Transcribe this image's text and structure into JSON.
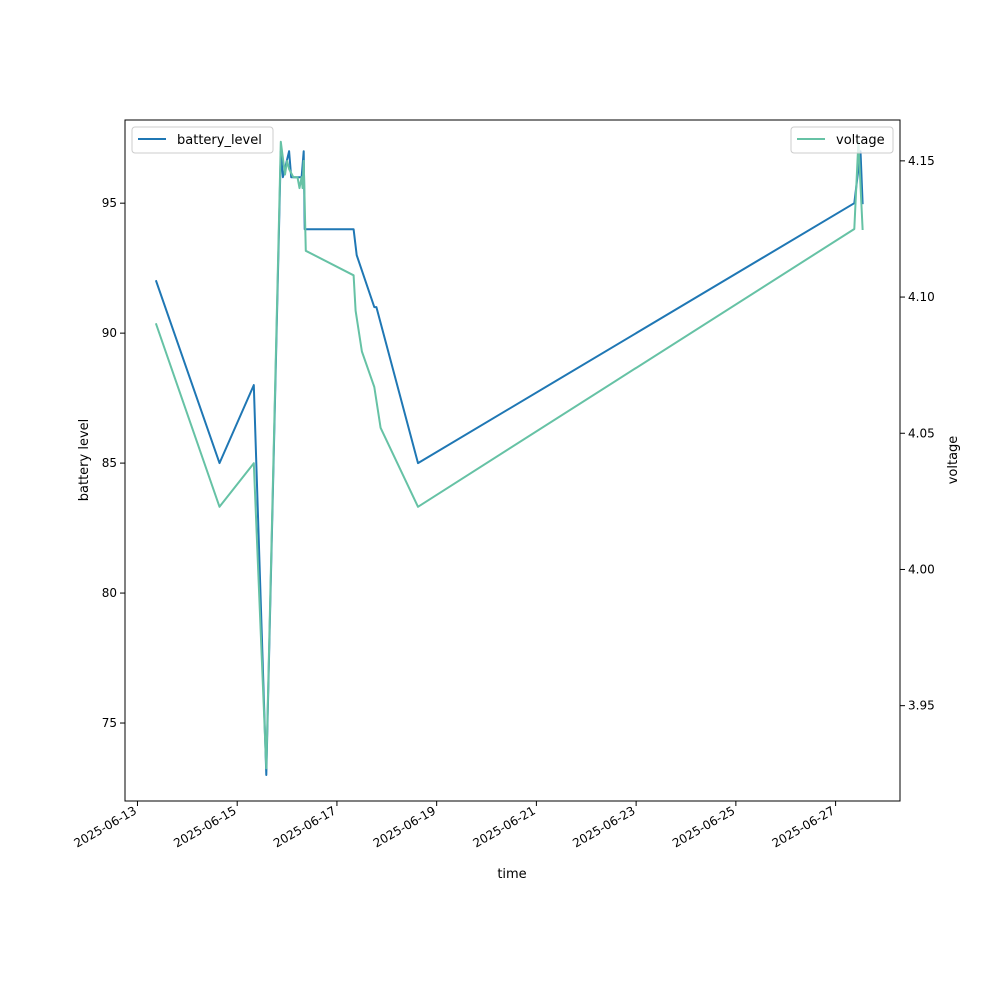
{
  "chart_data": {
    "type": "line",
    "xlabel": "time",
    "ylabel": "battery level",
    "y2label": "voltage",
    "xlim": [
      "2025-06-12 18:00",
      "2025-06-28 07:00"
    ],
    "ylim": [
      72,
      98.2
    ],
    "y2lim": [
      3.915,
      4.165
    ],
    "x_ticks": [
      "2025-06-13",
      "2025-06-15",
      "2025-06-17",
      "2025-06-19",
      "2025-06-21",
      "2025-06-23",
      "2025-06-25",
      "2025-06-27"
    ],
    "y_ticks": [
      75,
      80,
      85,
      90,
      95
    ],
    "y2_ticks": [
      "3.95",
      "4.00",
      "4.05",
      "4.10",
      "4.15"
    ],
    "legend_left": {
      "placement": "top-left",
      "label": "battery_level"
    },
    "legend_right": {
      "placement": "top-right",
      "label": "voltage"
    },
    "colors": {
      "battery_level": "#1f77b4",
      "voltage": "#66c2a5"
    },
    "series": [
      {
        "name": "battery_level",
        "axis": "left",
        "points": [
          [
            "2025-06-13 09:00",
            92
          ],
          [
            "2025-06-14 15:30",
            85
          ],
          [
            "2025-06-15 08:00",
            88
          ],
          [
            "2025-06-15 14:00",
            73
          ],
          [
            "2025-06-15 21:00",
            97
          ],
          [
            "2025-06-15 22:00",
            96
          ],
          [
            "2025-06-16 01:00",
            97
          ],
          [
            "2025-06-16 02:00",
            96
          ],
          [
            "2025-06-16 07:00",
            96
          ],
          [
            "2025-06-16 08:00",
            97
          ],
          [
            "2025-06-16 08:30",
            94
          ],
          [
            "2025-06-17 08:00",
            94
          ],
          [
            "2025-06-17 09:30",
            93
          ],
          [
            "2025-06-17 18:00",
            91
          ],
          [
            "2025-06-17 19:00",
            91
          ],
          [
            "2025-06-18 15:00",
            85
          ],
          [
            "2025-06-27 09:00",
            95
          ],
          [
            "2025-06-27 12:00",
            97
          ],
          [
            "2025-06-27 13:00",
            95
          ]
        ]
      },
      {
        "name": "voltage",
        "axis": "right",
        "points": [
          [
            "2025-06-13 09:00",
            4.09
          ],
          [
            "2025-06-14 15:30",
            4.023
          ],
          [
            "2025-06-15 08:00",
            4.039
          ],
          [
            "2025-06-15 14:00",
            3.927
          ],
          [
            "2025-06-15 21:00",
            4.157
          ],
          [
            "2025-06-15 23:00",
            4.145
          ],
          [
            "2025-06-16 00:00",
            4.15
          ],
          [
            "2025-06-16 01:00",
            4.147
          ],
          [
            "2025-06-16 03:00",
            4.144
          ],
          [
            "2025-06-16 05:00",
            4.144
          ],
          [
            "2025-06-16 06:00",
            4.14
          ],
          [
            "2025-06-16 07:00",
            4.144
          ],
          [
            "2025-06-16 07:30",
            4.14
          ],
          [
            "2025-06-16 08:00",
            4.15
          ],
          [
            "2025-06-16 09:00",
            4.117
          ],
          [
            "2025-06-17 08:00",
            4.108
          ],
          [
            "2025-06-17 09:00",
            4.095
          ],
          [
            "2025-06-17 12:00",
            4.08
          ],
          [
            "2025-06-17 18:00",
            4.067
          ],
          [
            "2025-06-17 21:00",
            4.052
          ],
          [
            "2025-06-18 15:00",
            4.023
          ],
          [
            "2025-06-27 09:00",
            4.125
          ],
          [
            "2025-06-27 11:00",
            4.157
          ],
          [
            "2025-06-27 13:00",
            4.125
          ]
        ]
      }
    ]
  }
}
